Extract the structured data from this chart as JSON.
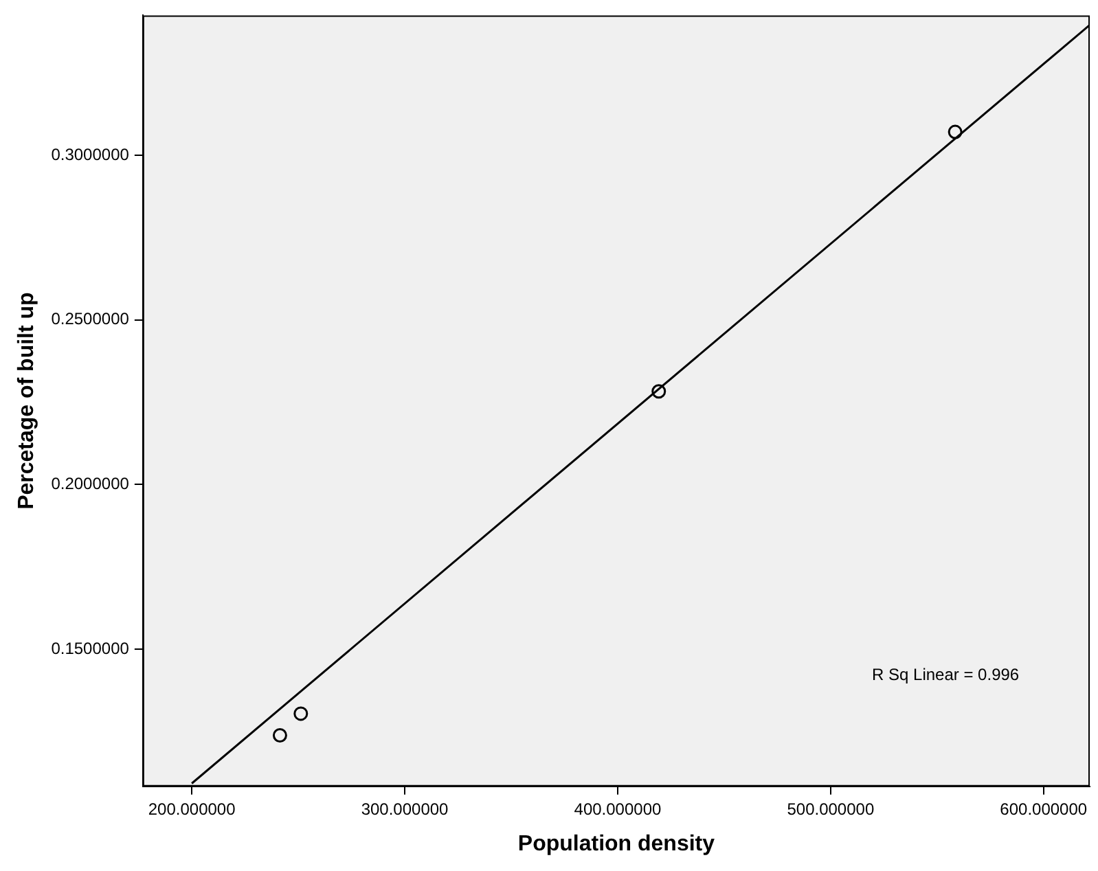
{
  "chart_data": {
    "type": "scatter",
    "xlabel": "Population density",
    "ylabel": "Percetage of built up",
    "xlim": [
      177,
      621.7
    ],
    "ylim": [
      0.1083,
      0.3425
    ],
    "xticks": [
      {
        "value": 200,
        "label": "200.000000"
      },
      {
        "value": 300,
        "label": "300.000000"
      },
      {
        "value": 400,
        "label": "400.000000"
      },
      {
        "value": 500,
        "label": "500.000000"
      },
      {
        "value": 600,
        "label": "600.000000"
      }
    ],
    "yticks": [
      {
        "value": 0.15,
        "label": "0.1500000"
      },
      {
        "value": 0.2,
        "label": "0.2000000"
      },
      {
        "value": 0.25,
        "label": "0.2500000"
      },
      {
        "value": 0.3,
        "label": "0.3000000"
      }
    ],
    "grid": false,
    "legend": false,
    "marker": "circle",
    "series": [
      {
        "type": "scatter",
        "color": "#000000",
        "x": [
          241.4,
          251.2,
          419.3,
          558.5
        ],
        "values": [
          0.1238,
          0.1304,
          0.2283,
          0.3071
        ]
      },
      {
        "type": "line",
        "color": "#000000",
        "x": [
          200,
          621.7
        ],
        "values": [
          0.1092,
          0.3396
        ],
        "marker": "none"
      }
    ],
    "annotations": [
      "R Sq Linear = 0.996"
    ]
  }
}
